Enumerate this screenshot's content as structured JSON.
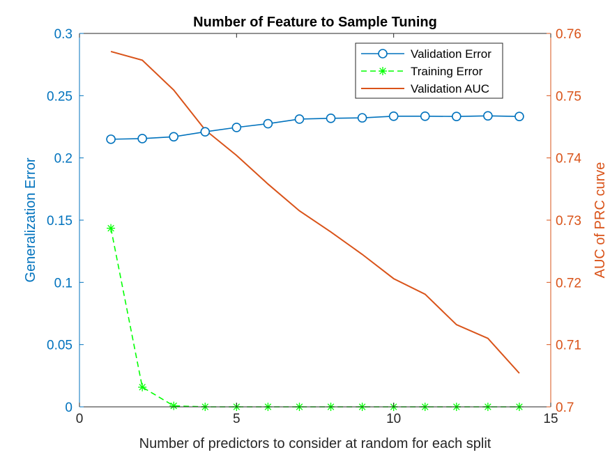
{
  "chart_data": {
    "type": "line",
    "title": "Number of Feature to Sample Tuning",
    "xlabel": "Number of predictors to consider at random for each split",
    "ylabel_left": "Generalization Error",
    "ylabel_right": "AUC of PRC curve",
    "xlim": [
      0,
      15
    ],
    "ylim_left": [
      0,
      0.3
    ],
    "ylim_right": [
      0.7,
      0.76
    ],
    "x_ticks": [
      0,
      5,
      10,
      15
    ],
    "y_left_ticks": [
      0,
      0.05,
      0.1,
      0.15,
      0.2,
      0.25,
      0.3
    ],
    "y_right_ticks": [
      0.7,
      0.71,
      0.72,
      0.73,
      0.74,
      0.75,
      0.76
    ],
    "x_tick_labels": [
      "0",
      "5",
      "10",
      "15"
    ],
    "y_left_tick_labels": [
      "0",
      "0.05",
      "0.1",
      "0.15",
      "0.2",
      "0.25",
      "0.3"
    ],
    "y_right_tick_labels": [
      "0.7",
      "0.71",
      "0.72",
      "0.73",
      "0.74",
      "0.75",
      "0.76"
    ],
    "grid": false,
    "legend_position": "top-right",
    "colors": {
      "left_axis": "#0072BD",
      "right_axis": "#D95319",
      "validation_error": "#0072BD",
      "training_error": "#00FF00",
      "validation_auc": "#D95319",
      "frame": "#262626"
    },
    "series": [
      {
        "name": "Validation Error",
        "axis": "left",
        "marker": "circle",
        "line_style": "solid",
        "x": [
          1,
          2,
          3,
          4,
          5,
          6,
          7,
          8,
          9,
          10,
          11,
          12,
          13,
          14
        ],
        "values": [
          0.215,
          0.2155,
          0.217,
          0.221,
          0.2245,
          0.2275,
          0.2312,
          0.2318,
          0.2322,
          0.2335,
          0.2335,
          0.2333,
          0.2338,
          0.2333
        ]
      },
      {
        "name": "Training Error",
        "axis": "left",
        "marker": "asterisk",
        "line_style": "dashed",
        "x": [
          1,
          2,
          3,
          4,
          5,
          6,
          7,
          8,
          9,
          10,
          11,
          12,
          13,
          14
        ],
        "values": [
          0.1435,
          0.0158,
          0.0008,
          0,
          0,
          0,
          0,
          0,
          0,
          0,
          0,
          0,
          0,
          0
        ]
      },
      {
        "name": "Validation AUC",
        "axis": "right",
        "marker": "none",
        "line_style": "solid",
        "x": [
          1,
          2,
          3,
          4,
          5,
          6,
          7,
          8,
          9,
          10,
          11,
          12,
          13,
          14
        ],
        "values": [
          0.7571,
          0.7557,
          0.7509,
          0.7445,
          0.7404,
          0.7358,
          0.7315,
          0.7281,
          0.7245,
          0.7206,
          0.7181,
          0.7132,
          0.711,
          0.7054
        ]
      }
    ]
  }
}
